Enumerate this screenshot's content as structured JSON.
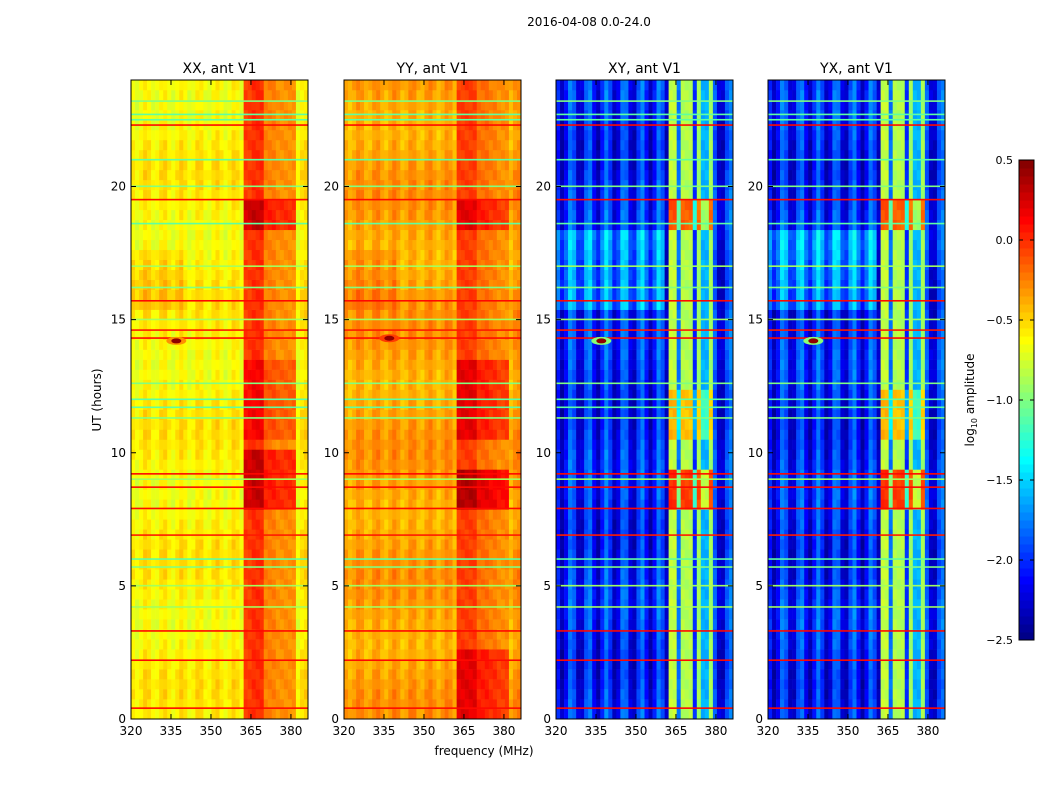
{
  "chart_data": {
    "type": "heatmap",
    "suptitle": "2016-04-08 0.0-24.0",
    "xlabel": "frequency (MHz)",
    "ylabel": "UT (hours)",
    "xlim": [
      320,
      386.4
    ],
    "ylim": [
      0,
      24
    ],
    "xticks": [
      "320",
      "335",
      "350",
      "365",
      "380"
    ],
    "yticks": [
      "0",
      "5",
      "10",
      "15",
      "20"
    ],
    "colorbar": {
      "label": "log10 amplitude",
      "label_main": "log",
      "label_sub": "10",
      "label_rest": " amplitude",
      "range": [
        -2.5,
        0.5
      ],
      "ticks": [
        "0.5",
        "0.0",
        "−0.5",
        "−1.0",
        "−1.5",
        "−2.0",
        "−2.5"
      ],
      "tick_values": [
        0.5,
        0.0,
        -0.5,
        -1.0,
        -1.5,
        -2.0,
        -2.5
      ],
      "colormap": "jet"
    },
    "panels": [
      {
        "title": "XX, ant V1",
        "base": -0.6,
        "ripple": 0.08,
        "band": [
          [
            362,
            366,
            -0.05
          ],
          [
            366,
            370,
            0.0
          ],
          [
            370,
            374,
            -0.25
          ],
          [
            374,
            378,
            -0.3
          ],
          [
            378,
            382,
            -0.3
          ]
        ],
        "band_boost_hours": [
          [
            7.8,
            10.2,
            0.3
          ],
          [
            18.5,
            19.6,
            0.3
          ],
          [
            10.5,
            13.5,
            0.15
          ]
        ],
        "hotspot": [
          337,
          14.2,
          0.5
        ]
      },
      {
        "title": "YY, ant V1",
        "base": -0.35,
        "ripple": 0.08,
        "band": [
          [
            362,
            366,
            -0.05
          ],
          [
            366,
            370,
            -0.05
          ],
          [
            370,
            374,
            -0.2
          ],
          [
            374,
            378,
            -0.25
          ],
          [
            378,
            382,
            -0.3
          ]
        ],
        "band_boost_hours": [
          [
            7.8,
            9.5,
            0.4
          ],
          [
            0,
            2.5,
            0.25
          ],
          [
            10.5,
            13.5,
            0.25
          ],
          [
            18.5,
            19.6,
            0.25
          ]
        ],
        "hotspot": [
          337,
          14.3,
          0.5
        ]
      },
      {
        "title": "XY, ant V1",
        "base": -2.05,
        "ripple": 0.3,
        "band": [
          [
            363,
            366,
            -0.8
          ],
          [
            366,
            367.5,
            -1.8
          ],
          [
            367.5,
            371,
            -0.85
          ],
          [
            371,
            372.5,
            -2.0
          ],
          [
            372.5,
            375,
            -0.9
          ],
          [
            375,
            377,
            -1.6
          ],
          [
            377,
            379.5,
            -0.9
          ]
        ],
        "band_boost_hours": [
          [
            7.8,
            9.5,
            0.8
          ],
          [
            18.5,
            19.6,
            0.7
          ],
          [
            10.5,
            12.5,
            0.4
          ]
        ],
        "hotspot": [
          337,
          14.2,
          1.8
        ]
      },
      {
        "title": "YX, ant V1",
        "base": -2.05,
        "ripple": 0.3,
        "band": [
          [
            363,
            366,
            -0.8
          ],
          [
            366,
            367.5,
            -1.8
          ],
          [
            367.5,
            371,
            -0.85
          ],
          [
            371,
            372.5,
            -2.0
          ],
          [
            372.5,
            375,
            -0.9
          ],
          [
            375,
            377,
            -1.6
          ],
          [
            377,
            379.5,
            -0.9
          ]
        ],
        "band_boost_hours": [
          [
            7.8,
            9.5,
            0.8
          ],
          [
            18.5,
            19.6,
            0.7
          ],
          [
            10.5,
            12.5,
            0.4
          ]
        ],
        "hotspot": [
          337,
          14.2,
          1.8
        ]
      }
    ],
    "rfi_rows": [
      {
        "hour": 0.4,
        "value": 0.1
      },
      {
        "hour": 2.2,
        "value": 0.1
      },
      {
        "hour": 3.3,
        "value": 0.1
      },
      {
        "hour": 4.2,
        "value": -0.9
      },
      {
        "hour": 5.0,
        "value": -0.9
      },
      {
        "hour": 5.7,
        "value": -1.0
      },
      {
        "hour": 6.0,
        "value": -1.1
      },
      {
        "hour": 6.9,
        "value": 0.05
      },
      {
        "hour": 7.9,
        "value": 0.1
      },
      {
        "hour": 8.7,
        "value": 0.1
      },
      {
        "hour": 9.0,
        "value": -0.9
      },
      {
        "hour": 9.2,
        "value": 0.1
      },
      {
        "hour": 11.3,
        "value": -1.0
      },
      {
        "hour": 11.7,
        "value": -1.1
      },
      {
        "hour": 12.0,
        "value": -1.1
      },
      {
        "hour": 12.6,
        "value": -1.0
      },
      {
        "hour": 14.3,
        "value": 0.1
      },
      {
        "hour": 14.6,
        "value": 0.05
      },
      {
        "hour": 15.0,
        "value": -0.9
      },
      {
        "hour": 15.7,
        "value": 0.1
      },
      {
        "hour": 16.2,
        "value": -1.0
      },
      {
        "hour": 17.0,
        "value": -0.9
      },
      {
        "hour": 18.6,
        "value": -1.1
      },
      {
        "hour": 19.5,
        "value": 0.1
      },
      {
        "hour": 20.0,
        "value": -1.0
      },
      {
        "hour": 21.0,
        "value": -1.1
      },
      {
        "hour": 22.3,
        "value": 0.1
      },
      {
        "hour": 22.5,
        "value": -1.1
      },
      {
        "hour": 22.7,
        "value": -1.1
      },
      {
        "hour": 23.2,
        "value": -1.0
      }
    ]
  }
}
